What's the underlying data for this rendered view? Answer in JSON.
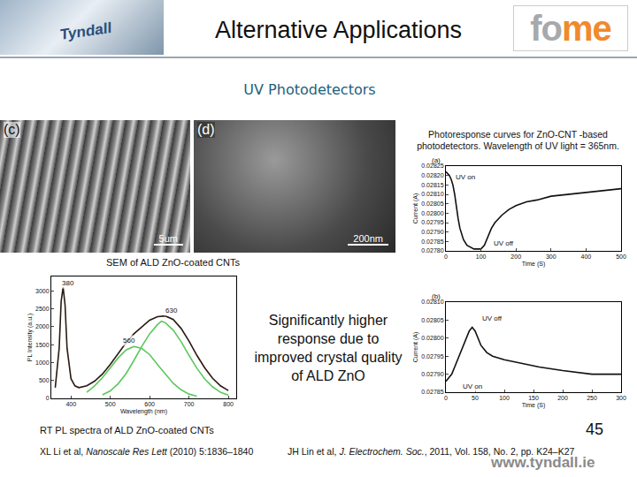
{
  "header": {
    "logo_text": "Tyndall",
    "title": "Alternative Applications",
    "brand": [
      "fo",
      "me"
    ]
  },
  "subtitle": "UV Photodetectors",
  "images": [
    {
      "label": "(c)",
      "scale": "5um"
    },
    {
      "label": "(d)",
      "scale": "200nm"
    }
  ],
  "images_caption": "SEM of ALD ZnO-coated CNTs",
  "photoresponse_caption": "Photoresponse curves for ZnO-CNT -based photodetectors. Wavelength of UV light = 365nm.",
  "highlight": "Significantly higher response due to improved crystal quality of ALD ZnO",
  "pl_caption": "RT PL spectra of ALD ZnO-coated CNTs",
  "citations": [
    {
      "authors": "XL Li et al, ",
      "journal": "Nanoscale Res Lett",
      "rest": " (2010) 5:1836–1840"
    },
    {
      "authors": "JH Lin et al, ",
      "journal": "J. Electrochem. Soc.",
      "rest": ", 2011, Vol. 158, No. 2, pp. K24–K27"
    }
  ],
  "page_number": "45",
  "footer": "www.tyndall.ie",
  "chart_data": [
    {
      "type": "line",
      "x_label": "Wavelength (nm)",
      "y_label": "PL Intensity (a.u.)",
      "xlim": [
        350,
        820
      ],
      "xticks": [
        400,
        500,
        600,
        700,
        800
      ],
      "ylim": [
        0,
        3400
      ],
      "yticks": [
        0,
        500,
        1000,
        1500,
        2000,
        2500,
        3000
      ],
      "grid": false,
      "annotations": [
        {
          "text": "380",
          "x": 392,
          "y": 3220
        },
        {
          "text": "560",
          "x": 548,
          "y": 1620
        },
        {
          "text": "630",
          "x": 655,
          "y": 2440
        }
      ],
      "series": [
        {
          "color": "#2a1a12",
          "line_style": "solid",
          "x": [
            360,
            370,
            375,
            380,
            385,
            390,
            400,
            410,
            420,
            440,
            460,
            480,
            500,
            520,
            540,
            560,
            580,
            600,
            620,
            640,
            660,
            680,
            700,
            720,
            740,
            760,
            780,
            800
          ],
          "values": [
            300,
            1400,
            2700,
            3100,
            2600,
            1400,
            550,
            350,
            300,
            350,
            480,
            680,
            950,
            1250,
            1550,
            1800,
            2000,
            2180,
            2280,
            2300,
            2200,
            1950,
            1600,
            1200,
            850,
            560,
            350,
            220
          ]
        },
        {
          "color": "#5cc85c",
          "line_style": "solid",
          "x": [
            440,
            460,
            480,
            500,
            520,
            540,
            560,
            580,
            600,
            620,
            640,
            660,
            680,
            700,
            720
          ],
          "values": [
            170,
            350,
            580,
            870,
            1130,
            1350,
            1450,
            1390,
            1220,
            940,
            670,
            420,
            240,
            120,
            60
          ]
        },
        {
          "color": "#5cc85c",
          "line_style": "solid",
          "x": [
            480,
            500,
            520,
            540,
            560,
            580,
            600,
            620,
            630,
            640,
            660,
            680,
            700,
            720,
            740,
            760,
            780,
            800
          ],
          "values": [
            100,
            210,
            410,
            690,
            1060,
            1450,
            1800,
            2060,
            2150,
            2110,
            1900,
            1580,
            1200,
            840,
            540,
            320,
            170,
            90
          ]
        }
      ]
    },
    {
      "type": "line",
      "title": "(a)",
      "x_label": "Time (S)",
      "y_label": "Current (A)",
      "xlim": [
        0,
        500
      ],
      "xticks": [
        0,
        100,
        200,
        300,
        400,
        500
      ],
      "ylim": [
        0.0278,
        0.02825
      ],
      "yticks": [
        {
          "value": 0.0278,
          "label": "0.02780"
        },
        {
          "value": 0.02785,
          "label": "0.02785"
        },
        {
          "value": 0.0279,
          "label": "0.02790"
        },
        {
          "value": 0.02795,
          "label": "0.02795"
        },
        {
          "value": 0.028,
          "label": "0.02800"
        },
        {
          "value": 0.02805,
          "label": "0.02805"
        },
        {
          "value": 0.0281,
          "label": "0.02810"
        },
        {
          "value": 0.02815,
          "label": "0.02815"
        },
        {
          "value": 0.0282,
          "label": "0.02820"
        },
        {
          "value": 0.02825,
          "label": "0.02825"
        }
      ],
      "grid": false,
      "annotations": [
        {
          "text": "UV on",
          "x": 55,
          "y": 0.02819
        },
        {
          "text": "UV off",
          "x": 165,
          "y": 0.02784
        }
      ],
      "series": [
        {
          "color": "#111111",
          "line_style": "solid",
          "x": [
            0,
            5,
            10,
            15,
            20,
            25,
            30,
            35,
            40,
            50,
            60,
            70,
            80,
            90,
            100,
            110,
            120,
            130,
            140,
            160,
            180,
            200,
            230,
            260,
            300,
            350,
            400,
            450,
            500
          ],
          "values": [
            0.02822,
            0.02821,
            0.0282,
            0.02818,
            0.02815,
            0.0281,
            0.02803,
            0.02797,
            0.02792,
            0.02786,
            0.02783,
            0.02782,
            0.02781,
            0.02781,
            0.02781,
            0.02783,
            0.02788,
            0.02792,
            0.02795,
            0.02799,
            0.02802,
            0.02804,
            0.02806,
            0.02807,
            0.02809,
            0.0281,
            0.02811,
            0.02812,
            0.02813
          ]
        }
      ]
    },
    {
      "type": "line",
      "title": "(b)",
      "x_label": "Time (S)",
      "y_label": "Current (A)",
      "xlim": [
        0,
        300
      ],
      "xticks": [
        0,
        50,
        100,
        150,
        200,
        250,
        300
      ],
      "ylim": [
        0.02785,
        0.0281
      ],
      "yticks": [
        {
          "value": 0.02785,
          "label": "0.02785"
        },
        {
          "value": 0.0279,
          "label": "0.02790"
        },
        {
          "value": 0.02795,
          "label": "0.02795"
        },
        {
          "value": 0.028,
          "label": "0.02800"
        },
        {
          "value": 0.02805,
          "label": "0.02805"
        },
        {
          "value": 0.0281,
          "label": "0.02810"
        }
      ],
      "grid": false,
      "annotations": [
        {
          "text": "UV off",
          "x": 80,
          "y": 0.028055
        },
        {
          "text": "UV on",
          "x": 45,
          "y": 0.027865
        }
      ],
      "series": [
        {
          "color": "#111111",
          "line_style": "solid",
          "x": [
            0,
            5,
            10,
            15,
            20,
            25,
            30,
            35,
            40,
            45,
            50,
            55,
            60,
            70,
            80,
            100,
            130,
            160,
            200,
            250,
            300
          ],
          "values": [
            0.02788,
            0.02789,
            0.0279,
            0.02792,
            0.02794,
            0.02796,
            0.02798,
            0.028,
            0.02802,
            0.02803,
            0.02802,
            0.028,
            0.02798,
            0.02796,
            0.02795,
            0.02794,
            0.02793,
            0.02792,
            0.02791,
            0.0279,
            0.0279
          ]
        }
      ]
    }
  ]
}
